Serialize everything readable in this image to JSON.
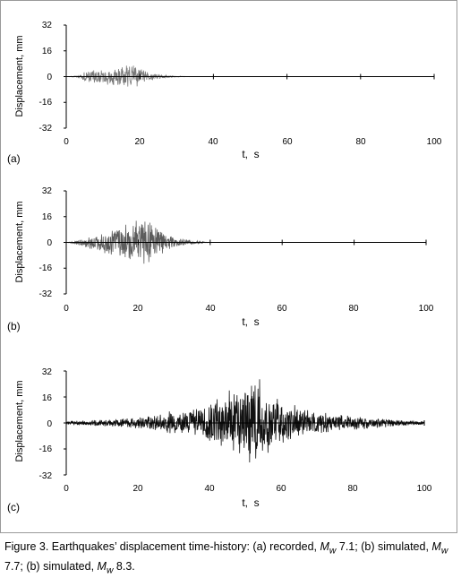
{
  "chart_data": [
    {
      "type": "line",
      "panel_label": "(a)",
      "ylabel": "Displacement, mm",
      "xlabel": "t,  s",
      "xlim": [
        0,
        100
      ],
      "ylim": [
        -32,
        32
      ],
      "xticks": [
        "0",
        "20",
        "40",
        "60",
        "80",
        "100"
      ],
      "yticks": [
        "32",
        "16",
        "0",
        "-16",
        "-32"
      ],
      "color": "#7a7a7a",
      "series": [
        {
          "x": [
            0,
            3,
            5,
            7,
            9,
            11,
            13,
            15,
            17,
            18,
            19,
            20,
            21,
            22,
            24,
            26,
            28,
            30,
            35,
            100
          ],
          "values": [
            0,
            0.5,
            3,
            4,
            4.5,
            5,
            5.5,
            6,
            7.5,
            8,
            7,
            6,
            4.5,
            3,
            2,
            1.2,
            0.6,
            0.3,
            0,
            0
          ]
        }
      ]
    },
    {
      "type": "line",
      "panel_label": "(b)",
      "ylabel": "Displacement, mm",
      "xlabel": "t,  s",
      "xlim": [
        0,
        100
      ],
      "ylim": [
        -32,
        32
      ],
      "xticks": [
        "0",
        "20",
        "40",
        "60",
        "80",
        "100"
      ],
      "yticks": [
        "32",
        "16",
        "0",
        "-16",
        "-32"
      ],
      "color": "#5c5c5c",
      "series": [
        {
          "x": [
            0,
            2,
            4,
            6,
            8,
            10,
            12,
            14,
            16,
            18,
            20,
            21,
            22,
            23,
            24,
            26,
            28,
            30,
            33,
            36,
            40,
            100
          ],
          "values": [
            0,
            0.8,
            2,
            3.5,
            5,
            6.5,
            8,
            9,
            10,
            11.5,
            13,
            14.5,
            16,
            13,
            11,
            8,
            5.5,
            3.5,
            2,
            1,
            0,
            0
          ]
        }
      ]
    },
    {
      "type": "line",
      "panel_label": "(c)",
      "ylabel": "Displacement, mm",
      "xlabel": "t,  s",
      "xlim": [
        0,
        100
      ],
      "ylim": [
        -32,
        32
      ],
      "xticks": [
        "0",
        "20",
        "40",
        "60",
        "80",
        "100"
      ],
      "yticks": [
        "32",
        "16",
        "0",
        "-16",
        "-32"
      ],
      "color": "#111111",
      "series": [
        {
          "x": [
            0,
            5,
            10,
            15,
            20,
            25,
            30,
            35,
            40,
            44,
            48,
            50,
            52,
            53,
            54,
            56,
            58,
            60,
            65,
            70,
            75,
            80,
            85,
            90,
            95,
            100
          ],
          "values": [
            1,
            1.5,
            2,
            2.5,
            3.5,
            5,
            7,
            9,
            13,
            17,
            21,
            23,
            25,
            28,
            26,
            20,
            16,
            13,
            9,
            7,
            5.5,
            4.5,
            3.5,
            2.5,
            1.5,
            1
          ]
        }
      ]
    }
  ],
  "caption": {
    "p1": "Figure 3. Earthquakes’ displacement time-history: (a) recorded, ",
    "m1": "M",
    "w1": "w",
    "p2": " 7.1; (b) simulated, ",
    "m2": "M",
    "w2": "w",
    "p3": " 7.7; (b) simulated, ",
    "m3": "M",
    "w3": "w",
    "p4": " 8.3."
  }
}
